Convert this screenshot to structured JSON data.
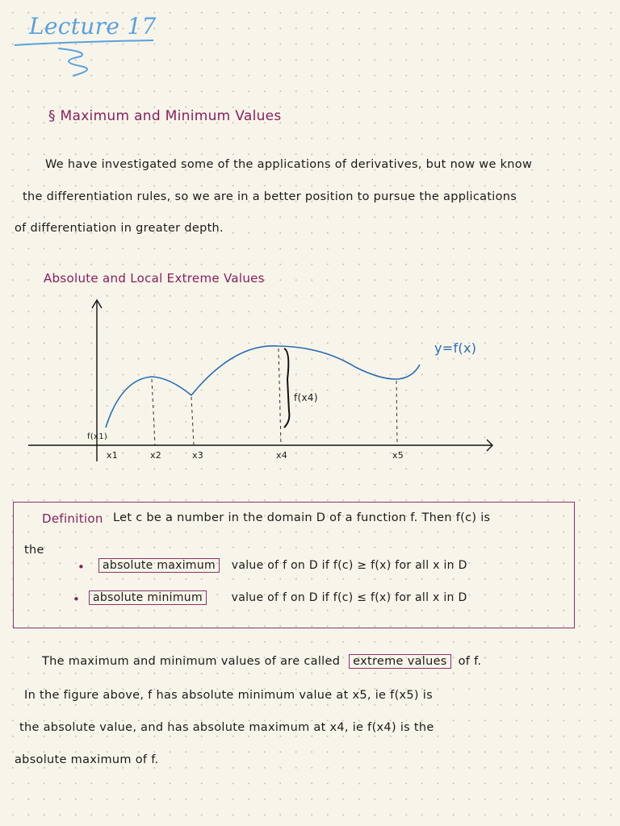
{
  "title": "Lecture 17",
  "section_heading": "§ Maximum and Minimum Values",
  "intro_lines": [
    "We have investigated some of the applications of derivatives, but now we know",
    "the differentiation rules, so we are in a better position to pursue the applications",
    "of differentiation in greater depth."
  ],
  "subheading": "Absolute and Local Extreme Values",
  "figure": {
    "curve_label": "y=f(x)",
    "brace_label": "f(x4)",
    "origin_label": "f(x1)",
    "x_labels": [
      "x1",
      "x2",
      "x3",
      "x4",
      "x5"
    ]
  },
  "definition": {
    "label": "Definition",
    "text": "Let c be a number in the domain D of a function f. Then f(c) is",
    "continuation": "the",
    "items": [
      {
        "term": "absolute maximum",
        "rest": "value of f on D if f(c) ≥ f(x) for all x in D"
      },
      {
        "term": "absolute minimum",
        "rest": "value of f on D if f(c) ≤ f(x) for all x in D"
      }
    ]
  },
  "closing": {
    "line1_pre": "The maximum and minimum values of are called",
    "line1_term": "extreme values",
    "line1_post": "of f.",
    "lines": [
      "In the figure above, f has absolute minimum value at x5, ie f(x5) is",
      "the absolute value, and has absolute maximum at x4, ie f(x4) is the",
      "absolute maximum of f."
    ]
  },
  "colors": {
    "accent": "#8a1f5c",
    "title": "#5aa0e0",
    "curve": "#2a6cb3"
  }
}
